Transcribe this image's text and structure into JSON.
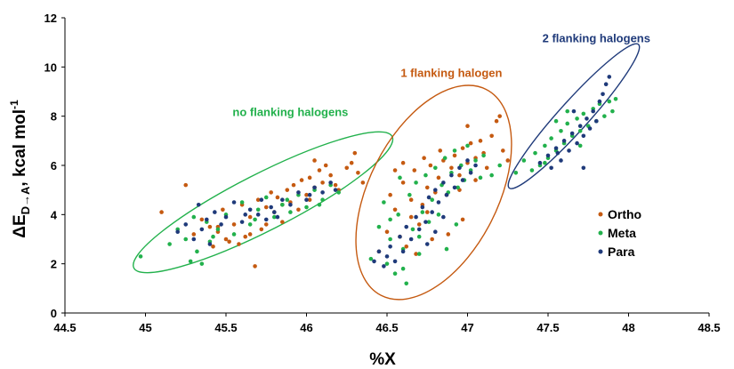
{
  "chart_data": {
    "type": "scatter",
    "xlabel": "%X",
    "ylabel_main": "ΔE",
    "ylabel_sub": "D→A",
    "ylabel_rest": ", kcal mol",
    "ylabel_sup": "-1",
    "xlim": [
      44.5,
      48.5
    ],
    "ylim": [
      0,
      12
    ],
    "x_ticks": [
      "44.5",
      "45",
      "45.5",
      "46",
      "46.5",
      "47",
      "47.5",
      "48",
      "48.5"
    ],
    "y_ticks": [
      "0",
      "2",
      "4",
      "6",
      "8",
      "10",
      "12"
    ],
    "grid": false,
    "legend_position": "right",
    "series": [
      {
        "name": "Ortho",
        "color": "#c55a11",
        "points": [
          [
            45.1,
            4.1
          ],
          [
            45.25,
            5.2
          ],
          [
            45.3,
            3.2
          ],
          [
            45.35,
            3.8
          ],
          [
            45.4,
            3.5
          ],
          [
            45.42,
            2.7
          ],
          [
            45.45,
            3.3
          ],
          [
            45.48,
            4.2
          ],
          [
            45.5,
            3.0
          ],
          [
            45.52,
            2.9
          ],
          [
            45.55,
            3.6
          ],
          [
            45.58,
            2.8
          ],
          [
            45.6,
            4.4
          ],
          [
            45.62,
            3.1
          ],
          [
            45.65,
            3.9
          ],
          [
            45.68,
            1.9
          ],
          [
            45.7,
            4.6
          ],
          [
            45.72,
            3.4
          ],
          [
            45.75,
            4.3
          ],
          [
            45.78,
            4.9
          ],
          [
            45.8,
            4.1
          ],
          [
            45.82,
            4.7
          ],
          [
            45.85,
            3.7
          ],
          [
            45.88,
            5.0
          ],
          [
            45.9,
            4.5
          ],
          [
            45.92,
            5.2
          ],
          [
            45.95,
            4.2
          ],
          [
            45.97,
            5.4
          ],
          [
            46.0,
            4.8
          ],
          [
            46.02,
            5.5
          ],
          [
            46.05,
            5.1
          ],
          [
            46.05,
            6.2
          ],
          [
            46.08,
            5.8
          ],
          [
            46.1,
            5.3
          ],
          [
            46.12,
            6.0
          ],
          [
            46.15,
            5.6
          ],
          [
            46.18,
            5.2
          ],
          [
            46.2,
            5.0
          ],
          [
            46.25,
            5.9
          ],
          [
            46.28,
            6.1
          ],
          [
            46.3,
            6.5
          ],
          [
            46.32,
            5.7
          ],
          [
            46.35,
            5.3
          ],
          [
            45.45,
            3.5
          ],
          [
            45.65,
            3.2
          ],
          [
            45.85,
            4.4
          ],
          [
            46.02,
            4.6
          ],
          [
            45.75,
            3.6
          ],
          [
            46.45,
            2.5
          ],
          [
            46.5,
            3.3
          ],
          [
            46.52,
            4.8
          ],
          [
            46.55,
            4.2
          ],
          [
            46.58,
            3.1
          ],
          [
            46.6,
            5.3
          ],
          [
            46.62,
            2.7
          ],
          [
            46.65,
            4.6
          ],
          [
            46.67,
            5.8
          ],
          [
            46.7,
            3.6
          ],
          [
            46.72,
            4.4
          ],
          [
            46.75,
            5.1
          ],
          [
            46.77,
            6.0
          ],
          [
            46.8,
            4.9
          ],
          [
            46.82,
            5.5
          ],
          [
            46.85,
            6.2
          ],
          [
            46.87,
            4.8
          ],
          [
            46.9,
            5.9
          ],
          [
            46.92,
            6.4
          ],
          [
            46.95,
            5.6
          ],
          [
            46.97,
            6.7
          ],
          [
            47.0,
            6.1
          ],
          [
            47.0,
            7.6
          ],
          [
            47.02,
            6.9
          ],
          [
            47.05,
            6.3
          ],
          [
            47.08,
            7.0
          ],
          [
            47.1,
            6.5
          ],
          [
            47.12,
            5.9
          ],
          [
            47.15,
            7.2
          ],
          [
            47.18,
            7.8
          ],
          [
            47.2,
            8.0
          ],
          [
            47.22,
            6.6
          ],
          [
            47.25,
            6.2
          ],
          [
            46.97,
            3.8
          ],
          [
            46.88,
            3.2
          ],
          [
            46.78,
            3.0
          ],
          [
            46.68,
            2.4
          ],
          [
            46.73,
            6.3
          ],
          [
            46.83,
            6.6
          ],
          [
            46.6,
            6.1
          ],
          [
            46.65,
            3.9
          ],
          [
            46.55,
            5.8
          ],
          [
            46.75,
            4.1
          ],
          [
            46.95,
            5.0
          ],
          [
            47.05,
            5.4
          ]
        ]
      },
      {
        "name": "Meta",
        "color": "#22b14c",
        "points": [
          [
            44.97,
            2.3
          ],
          [
            45.15,
            2.8
          ],
          [
            45.2,
            3.4
          ],
          [
            45.25,
            3.0
          ],
          [
            45.28,
            2.1
          ],
          [
            45.3,
            3.9
          ],
          [
            45.32,
            2.5
          ],
          [
            45.35,
            2.0
          ],
          [
            45.38,
            3.7
          ],
          [
            45.4,
            2.9
          ],
          [
            45.45,
            3.4
          ],
          [
            45.5,
            4.0
          ],
          [
            45.55,
            3.2
          ],
          [
            45.6,
            4.5
          ],
          [
            45.65,
            3.6
          ],
          [
            45.7,
            4.2
          ],
          [
            45.75,
            4.7
          ],
          [
            45.8,
            3.9
          ],
          [
            45.85,
            4.4
          ],
          [
            45.9,
            4.1
          ],
          [
            45.95,
            4.8
          ],
          [
            46.0,
            4.3
          ],
          [
            46.05,
            5.0
          ],
          [
            46.1,
            4.6
          ],
          [
            46.15,
            5.2
          ],
          [
            46.2,
            4.9
          ],
          [
            45.42,
            3.1
          ],
          [
            45.68,
            3.8
          ],
          [
            45.88,
            4.6
          ],
          [
            46.08,
            4.4
          ],
          [
            46.4,
            2.2
          ],
          [
            46.45,
            3.5
          ],
          [
            46.48,
            4.5
          ],
          [
            46.5,
            2.0
          ],
          [
            46.52,
            3.0
          ],
          [
            46.55,
            1.6
          ],
          [
            46.57,
            4.0
          ],
          [
            46.6,
            2.6
          ],
          [
            46.62,
            1.2
          ],
          [
            46.64,
            4.8
          ],
          [
            46.66,
            3.4
          ],
          [
            46.68,
            5.3
          ],
          [
            46.7,
            2.4
          ],
          [
            46.72,
            4.1
          ],
          [
            46.74,
            5.6
          ],
          [
            46.76,
            3.7
          ],
          [
            46.78,
            4.6
          ],
          [
            46.8,
            5.9
          ],
          [
            46.82,
            4.0
          ],
          [
            46.84,
            5.2
          ],
          [
            46.86,
            6.3
          ],
          [
            46.88,
            4.9
          ],
          [
            46.9,
            5.7
          ],
          [
            46.92,
            6.6
          ],
          [
            46.94,
            5.1
          ],
          [
            46.96,
            6.0
          ],
          [
            46.98,
            5.4
          ],
          [
            47.0,
            6.8
          ],
          [
            47.02,
            5.8
          ],
          [
            47.05,
            6.2
          ],
          [
            47.08,
            5.5
          ],
          [
            47.1,
            6.4
          ],
          [
            47.15,
            5.6
          ],
          [
            47.2,
            6.0
          ],
          [
            46.6,
            1.8
          ],
          [
            46.7,
            3.1
          ],
          [
            46.87,
            2.6
          ],
          [
            46.93,
            3.6
          ],
          [
            46.58,
            5.5
          ],
          [
            46.52,
            3.8
          ],
          [
            47.3,
            5.7
          ],
          [
            47.35,
            6.2
          ],
          [
            47.4,
            5.8
          ],
          [
            47.42,
            6.5
          ],
          [
            47.45,
            6.0
          ],
          [
            47.48,
            6.8
          ],
          [
            47.5,
            6.3
          ],
          [
            47.52,
            7.1
          ],
          [
            47.55,
            6.6
          ],
          [
            47.58,
            7.4
          ],
          [
            47.6,
            6.9
          ],
          [
            47.62,
            7.7
          ],
          [
            47.65,
            7.2
          ],
          [
            47.68,
            7.9
          ],
          [
            47.7,
            7.4
          ],
          [
            47.72,
            8.1
          ],
          [
            47.75,
            7.6
          ],
          [
            47.78,
            8.3
          ],
          [
            47.8,
            7.8
          ],
          [
            47.82,
            8.5
          ],
          [
            47.85,
            8.0
          ],
          [
            47.88,
            8.6
          ],
          [
            47.9,
            8.2
          ],
          [
            47.92,
            8.7
          ],
          [
            47.62,
            8.2
          ],
          [
            47.55,
            7.8
          ],
          [
            47.48,
            6.1
          ],
          [
            47.7,
            6.8
          ]
        ]
      },
      {
        "name": "Para",
        "color": "#1f3a7a",
        "points": [
          [
            45.2,
            3.3
          ],
          [
            45.25,
            3.6
          ],
          [
            45.3,
            3.0
          ],
          [
            45.33,
            4.4
          ],
          [
            45.35,
            3.4
          ],
          [
            45.38,
            3.8
          ],
          [
            45.4,
            2.8
          ],
          [
            45.43,
            4.1
          ],
          [
            45.47,
            3.6
          ],
          [
            45.5,
            3.9
          ],
          [
            45.55,
            4.5
          ],
          [
            45.6,
            3.7
          ],
          [
            45.65,
            4.2
          ],
          [
            45.7,
            4.0
          ],
          [
            45.72,
            4.6
          ],
          [
            45.75,
            3.8
          ],
          [
            45.78,
            4.3
          ],
          [
            45.8,
            4.1
          ],
          [
            45.85,
            4.6
          ],
          [
            45.9,
            4.4
          ],
          [
            45.95,
            4.9
          ],
          [
            46.0,
            4.6
          ],
          [
            46.05,
            5.1
          ],
          [
            46.1,
            4.9
          ],
          [
            46.15,
            5.3
          ],
          [
            46.18,
            5.0
          ],
          [
            45.62,
            4.0
          ],
          [
            45.82,
            3.9
          ],
          [
            46.02,
            4.8
          ],
          [
            46.42,
            2.1
          ],
          [
            46.45,
            2.5
          ],
          [
            46.48,
            1.9
          ],
          [
            46.5,
            2.3
          ],
          [
            46.52,
            2.7
          ],
          [
            46.55,
            2.1
          ],
          [
            46.58,
            3.1
          ],
          [
            46.6,
            2.5
          ],
          [
            46.62,
            3.5
          ],
          [
            46.65,
            3.0
          ],
          [
            46.68,
            3.9
          ],
          [
            46.7,
            3.4
          ],
          [
            46.72,
            4.3
          ],
          [
            46.74,
            3.7
          ],
          [
            46.76,
            4.7
          ],
          [
            46.78,
            4.1
          ],
          [
            46.8,
            5.0
          ],
          [
            46.82,
            4.5
          ],
          [
            46.85,
            5.3
          ],
          [
            46.87,
            4.8
          ],
          [
            46.9,
            5.6
          ],
          [
            46.92,
            5.1
          ],
          [
            46.95,
            5.9
          ],
          [
            46.97,
            5.4
          ],
          [
            47.0,
            6.2
          ],
          [
            47.02,
            5.7
          ],
          [
            47.05,
            6.0
          ],
          [
            46.75,
            2.8
          ],
          [
            46.8,
            3.3
          ],
          [
            46.85,
            3.9
          ],
          [
            47.45,
            6.1
          ],
          [
            47.5,
            6.4
          ],
          [
            47.52,
            5.9
          ],
          [
            47.55,
            6.7
          ],
          [
            47.58,
            6.2
          ],
          [
            47.6,
            7.0
          ],
          [
            47.63,
            6.6
          ],
          [
            47.65,
            7.3
          ],
          [
            47.68,
            6.9
          ],
          [
            47.7,
            7.6
          ],
          [
            47.72,
            7.2
          ],
          [
            47.74,
            7.9
          ],
          [
            47.76,
            7.5
          ],
          [
            47.78,
            8.2
          ],
          [
            47.8,
            7.8
          ],
          [
            47.82,
            8.6
          ],
          [
            47.84,
            8.9
          ],
          [
            47.86,
            9.3
          ],
          [
            47.88,
            9.6
          ],
          [
            47.72,
            5.9
          ],
          [
            47.66,
            8.2
          ],
          [
            47.56,
            6.5
          ]
        ]
      }
    ],
    "annotations": [
      {
        "text": "no flanking halogens",
        "color": "#22b14c",
        "x": 45.9,
        "y": 8.0
      },
      {
        "text": "1 flanking halogen",
        "color": "#c55a11",
        "x": 46.9,
        "y": 9.6
      },
      {
        "text": "2 flanking halogens",
        "color": "#1f3a7a",
        "x": 47.8,
        "y": 11.0
      }
    ],
    "ellipses": [
      {
        "label": "no flanking halogens",
        "color": "#22b14c",
        "cx": 45.73,
        "cy": 4.5,
        "rx_data": 0.9,
        "ry_data": 1.15,
        "angle_deg": -27
      },
      {
        "label": "1 flanking halogen",
        "color": "#c55a11",
        "cx": 46.79,
        "cy": 4.9,
        "rx_data": 0.4,
        "ry_data": 4.7,
        "angle_deg": 27
      },
      {
        "label": "2 flanking halogens",
        "color": "#1f3a7a",
        "cx": 47.66,
        "cy": 8.0,
        "rx_data": 0.6,
        "ry_data": 0.6,
        "angle_deg": -48
      }
    ]
  }
}
